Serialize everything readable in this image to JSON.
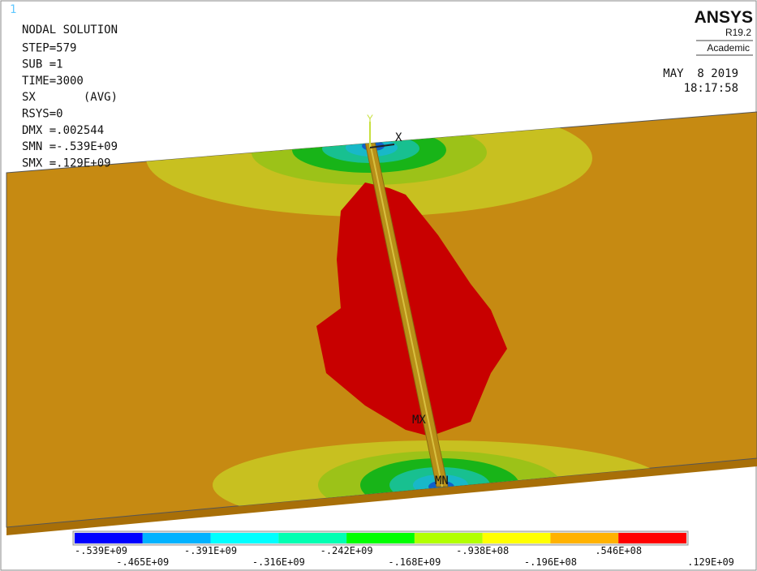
{
  "window_number": "1",
  "info": [
    "NODAL SOLUTION",
    "STEP=579",
    "SUB =1",
    "TIME=3000",
    "SX       (AVG)",
    "RSYS=0",
    "DMX =.002544",
    "SMN =-.539E+09",
    "SMX =.129E+09"
  ],
  "brand": {
    "name": "ANSYS",
    "release": "R19.2",
    "license": "Academic"
  },
  "date": "MAY  8 2019",
  "time": "18:17:58",
  "markers": {
    "y": "Y",
    "x": "X",
    "mx": "MX",
    "mn": "MN"
  },
  "legend": {
    "colors": [
      "#0000ff",
      "#00b2ff",
      "#00ffff",
      "#00ffb2",
      "#00ff00",
      "#b2ff00",
      "#ffff00",
      "#ffb200",
      "#ff0000"
    ],
    "labels": [
      "-.539E+09",
      "-.465E+09",
      "-.391E+09",
      "-.316E+09",
      "-.242E+09",
      "-.168E+09",
      "-.938E+08",
      "-.196E+08",
      ".546E+08",
      ".129E+09"
    ]
  }
}
